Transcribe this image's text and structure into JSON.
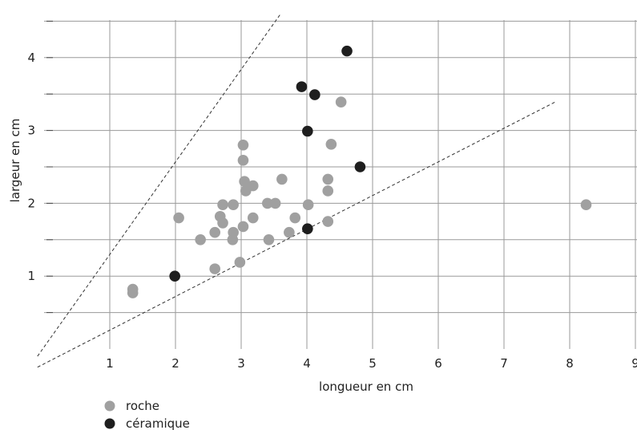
{
  "chart_data": {
    "type": "scatter",
    "title": "",
    "xlabel": "longueur en cm",
    "ylabel": "largeur en cm",
    "xlim": [
      0,
      9
    ],
    "ylim": [
      0,
      4.5
    ],
    "x_ticks": [
      1,
      2,
      3,
      4,
      5,
      6,
      7,
      8,
      9
    ],
    "y_ticks": [
      1,
      2,
      3,
      4
    ],
    "x_tick_labels": [
      "1",
      "2",
      "3",
      "4",
      "5",
      "6",
      "7",
      "8",
      "9"
    ],
    "y_tick_labels": [
      "1",
      "2",
      "3",
      "4"
    ],
    "grid": true,
    "legend_position": "bottom-left",
    "colors": {
      "roche": "#a0a0a0",
      "ceramique": "#1e1e1e",
      "grid": "#9a9a9a",
      "guide": "#333333"
    },
    "series": [
      {
        "name": "roche",
        "points": [
          [
            1.35,
            0.82
          ],
          [
            1.35,
            0.77
          ],
          [
            2.05,
            1.8
          ],
          [
            2.38,
            1.5
          ],
          [
            2.6,
            1.6
          ],
          [
            2.6,
            1.1
          ],
          [
            2.68,
            1.82
          ],
          [
            2.72,
            1.98
          ],
          [
            2.72,
            1.73
          ],
          [
            2.87,
            1.5
          ],
          [
            2.88,
            1.6
          ],
          [
            2.88,
            1.98
          ],
          [
            2.98,
            1.19
          ],
          [
            3.03,
            1.68
          ],
          [
            3.03,
            2.8
          ],
          [
            3.03,
            2.59
          ],
          [
            3.05,
            2.3
          ],
          [
            3.07,
            2.17
          ],
          [
            3.18,
            1.8
          ],
          [
            3.18,
            2.24
          ],
          [
            3.4,
            2.0
          ],
          [
            3.42,
            1.5
          ],
          [
            3.52,
            2.0
          ],
          [
            3.62,
            2.33
          ],
          [
            3.73,
            1.6
          ],
          [
            3.82,
            1.8
          ],
          [
            4.02,
            1.98
          ],
          [
            4.32,
            2.33
          ],
          [
            4.32,
            2.17
          ],
          [
            4.32,
            1.75
          ],
          [
            4.37,
            2.81
          ],
          [
            4.52,
            3.39
          ],
          [
            8.25,
            1.98
          ]
        ]
      },
      {
        "name": "céramique",
        "points": [
          [
            1.99,
            1.0
          ],
          [
            3.92,
            3.6
          ],
          [
            4.01,
            2.99
          ],
          [
            4.01,
            1.65
          ],
          [
            4.12,
            3.49
          ],
          [
            4.61,
            4.09
          ],
          [
            4.81,
            2.5
          ]
        ]
      }
    ],
    "guide_lines": [
      {
        "from": [
          -0.1,
          -0.1
        ],
        "to": [
          3.6,
          4.6
        ]
      },
      {
        "from": [
          -0.1,
          -0.25
        ],
        "to": [
          7.8,
          3.4
        ]
      }
    ]
  },
  "legend": {
    "roche": "roche",
    "ceramique": "céramique"
  }
}
